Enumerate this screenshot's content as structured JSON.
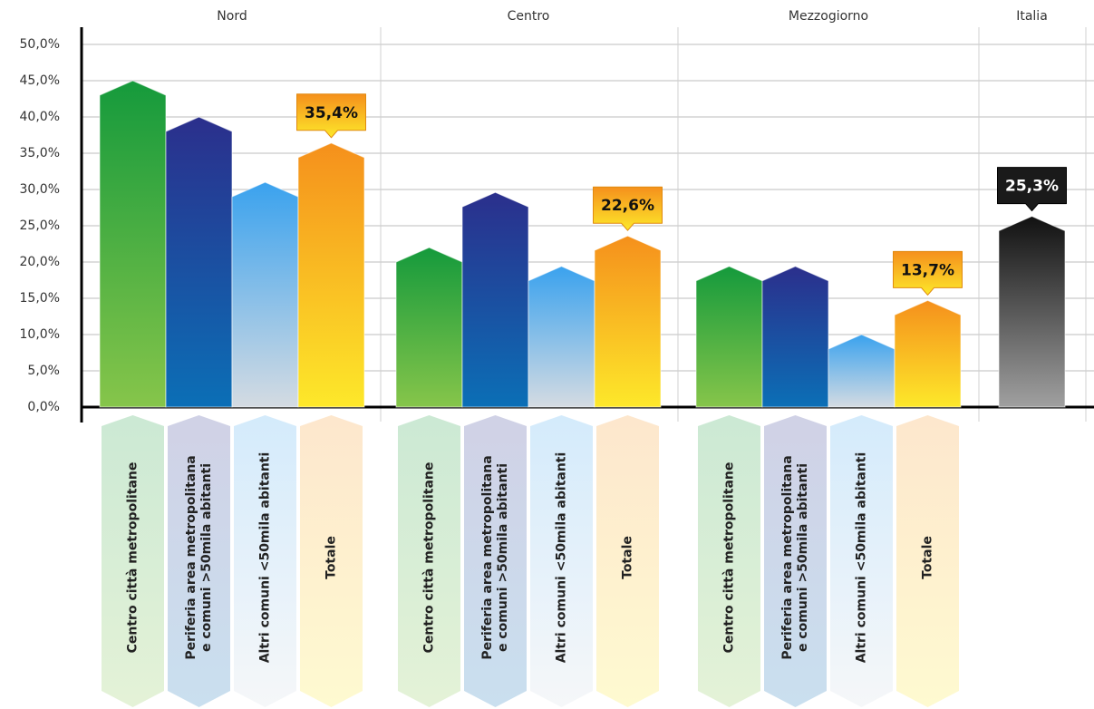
{
  "chart_data": {
    "type": "bar",
    "categories": [
      [
        "Centro città metropolitane"
      ],
      [
        "Periferia area metropolitana",
        "e comuni >50mila abitanti"
      ],
      [
        "Altri comuni <50mila abitanti"
      ],
      [
        "Totale"
      ]
    ],
    "colors": [
      [
        "#159a3c",
        "#86c54a"
      ],
      [
        "#2b2f8c",
        "#0b6fb6"
      ],
      [
        "#3aa2ee",
        "#d4dbe2"
      ],
      [
        "#f5901c",
        "#fde82a"
      ]
    ],
    "groups": [
      {
        "name": "Nord",
        "values": [
          44.0,
          39.0,
          30.0,
          35.4
        ],
        "value_labels": [
          null,
          null,
          null,
          "35,4%"
        ]
      },
      {
        "name": "Centro",
        "values": [
          21.0,
          28.6,
          18.4,
          22.6
        ],
        "value_labels": [
          null,
          null,
          null,
          "22,6%"
        ]
      },
      {
        "name": "Mezzogiorno",
        "values": [
          18.4,
          18.4,
          9.0,
          13.7
        ],
        "value_labels": [
          null,
          null,
          null,
          "13,7%"
        ]
      },
      {
        "name": "Italia",
        "values": [
          25.3
        ],
        "value_labels": [
          "25,3%"
        ],
        "colors": [
          [
            "#111111",
            "#a0a0a0"
          ]
        ]
      }
    ],
    "ylim": [
      0,
      50
    ],
    "yticks": [
      {
        "value": 0,
        "label": "0,0%"
      },
      {
        "value": 5,
        "label": "5,0%"
      },
      {
        "value": 10,
        "label": "10,0%"
      },
      {
        "value": 15,
        "label": "15,0%"
      },
      {
        "value": 20,
        "label": "20,0%"
      },
      {
        "value": 25,
        "label": "25,0%"
      },
      {
        "value": 30,
        "label": "30,0%"
      },
      {
        "value": 35,
        "label": "35,0%"
      },
      {
        "value": 40,
        "label": "40,0%"
      },
      {
        "value": 45,
        "label": "45,0%"
      },
      {
        "value": 50,
        "label": "50,0%"
      }
    ],
    "grid": true
  }
}
